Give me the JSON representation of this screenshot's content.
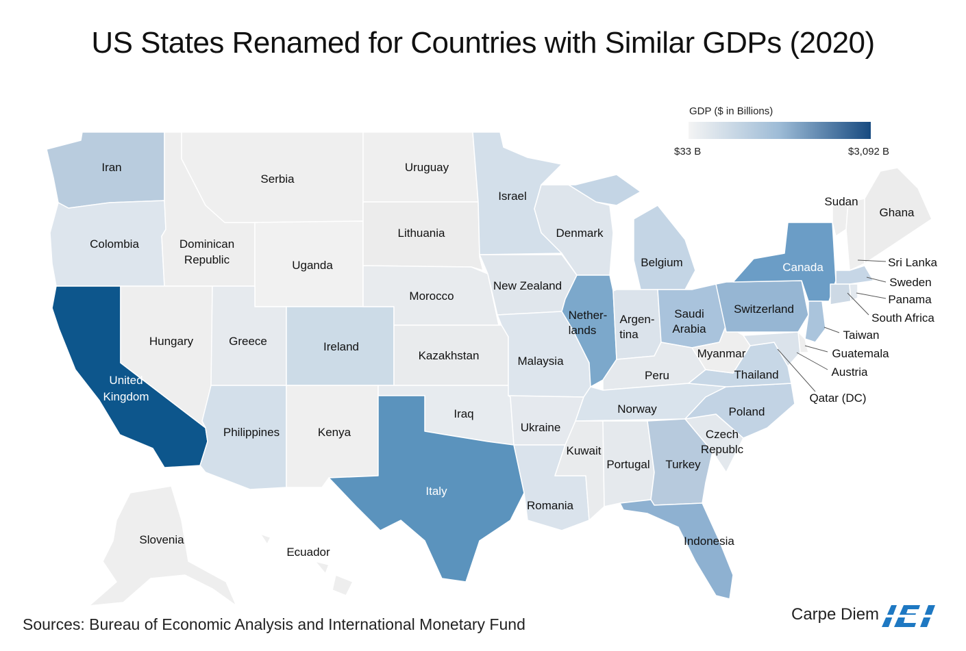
{
  "title": "US States Renamed for Countries with Similar GDPs (2020)",
  "legend": {
    "title": "GDP ($ in Billions)",
    "min_label": "$33 B",
    "max_label": "$3,092 B",
    "colors": {
      "low": "#f2f2f2",
      "mid": "#a9c4db",
      "high": "#1b4f86"
    }
  },
  "states": {
    "WA": "Iran",
    "OR": "Colombia",
    "CA_1": "United",
    "CA_2": "Kingdom",
    "ID_1": "Dominican",
    "ID_2": "Republic",
    "MT": "Serbia",
    "WY": "Uganda",
    "NV": "Hungary",
    "UT": "Greece",
    "CO": "Ireland",
    "AZ": "Philippines",
    "NM": "Kenya",
    "ND": "Uruguay",
    "SD": "Lithuania",
    "NE": "Morocco",
    "KS": "Kazakhstan",
    "OK": "Iraq",
    "TX": "Italy",
    "MN": "Israel",
    "IA": "New Zealand",
    "MO": "Malaysia",
    "AR": "Ukraine",
    "LA": "Romania",
    "WI": "Denmark",
    "IL_1": "Nether-",
    "IL_2": "lands",
    "MI": "Belgium",
    "IN_1": "Argen-",
    "IN_2": "tina",
    "OH_1": "Saudi",
    "OH_2": "Arabia",
    "KY": "Peru",
    "TN": "Norway",
    "MS": "Kuwait",
    "AL": "Portugal",
    "GA": "Turkey",
    "FL": "Indonesia",
    "SC_1": "Czech",
    "SC_2": "Republc",
    "NC": "Poland",
    "VA": "Thailand",
    "WV": "Myanmar",
    "PA": "Switzerland",
    "NY": "Canada",
    "VT": "Sudan",
    "ME": "Ghana",
    "NH": "Sri Lanka",
    "MA": "Sweden",
    "RI": "Panama",
    "CT": "South Africa",
    "NJ": "Taiwan",
    "DE": "Guatemala",
    "MD": "Austria",
    "DC": "Qatar (DC)",
    "AK": "Slovenia",
    "HI": "Ecuador"
  },
  "source": "Sources: Bureau of Economic Analysis and International Monetary Fund",
  "brand": "Carpe Diem",
  "logo_text": "AEI"
}
